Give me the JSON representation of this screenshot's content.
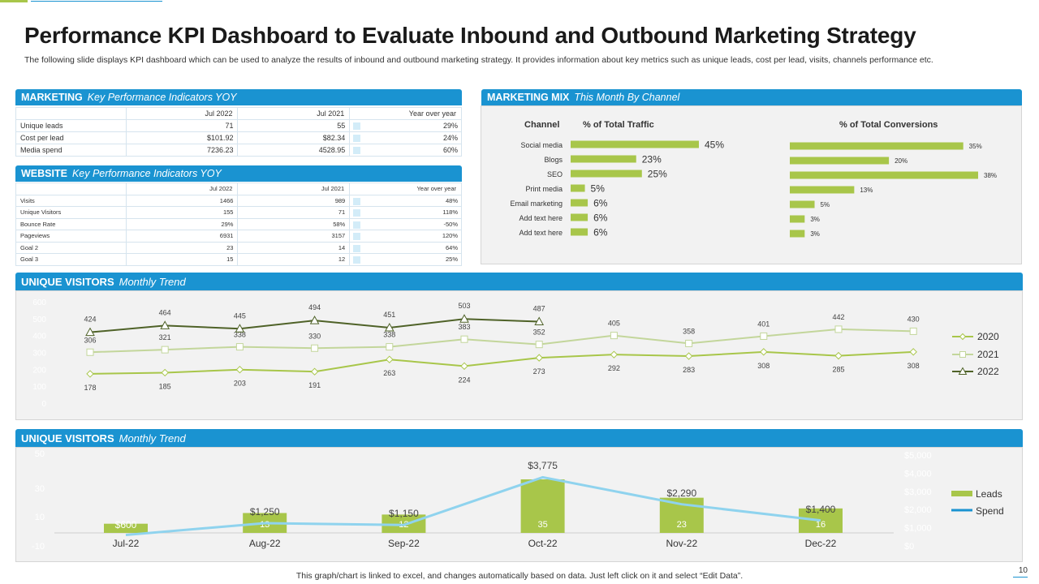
{
  "title": "Performance KPI Dashboard to Evaluate Inbound and Outbound Marketing Strategy",
  "subtitle": "The following slide displays KPI dashboard which can be used to analyze the results of inbound and outbound marketing strategy. It provides information about key metrics such as unique leads, cost per lead, visits, channels performance etc.",
  "marketing": {
    "title": "MARKETING",
    "subtitle": "Key Performance Indicators YOY",
    "columns": [
      "",
      "Jul 2022",
      "Jul 2021",
      "Year over year"
    ],
    "rows": [
      {
        "label": "Unique leads",
        "v2022": "71",
        "v2021": "55",
        "yoy": "29%"
      },
      {
        "label": "Cost per lead",
        "v2022": "$101.92",
        "v2021": "$82.34",
        "yoy": "24%"
      },
      {
        "label": "Media spend",
        "v2022": "7236.23",
        "v2021": "4528.95",
        "yoy": "60%"
      }
    ]
  },
  "website": {
    "title": "WEBSITE",
    "subtitle": "Key Performance Indicators YOY",
    "columns": [
      "",
      "Jul 2022",
      "Jul 2021",
      "Year over year"
    ],
    "rows": [
      {
        "label": "Visits",
        "v2022": "1466",
        "v2021": "989",
        "yoy": "48%"
      },
      {
        "label": "Unique Visitors",
        "v2022": "155",
        "v2021": "71",
        "yoy": "118%"
      },
      {
        "label": "Bounce Rate",
        "v2022": "29%",
        "v2021": "58%",
        "yoy": "-50%"
      },
      {
        "label": "Pageviews",
        "v2022": "6931",
        "v2021": "3157",
        "yoy": "120%"
      },
      {
        "label": "Goal 2",
        "v2022": "23",
        "v2021": "14",
        "yoy": "64%"
      },
      {
        "label": "Goal 3",
        "v2022": "15",
        "v2021": "12",
        "yoy": "25%"
      }
    ]
  },
  "mix": {
    "title": "MARKETING  MIX",
    "subtitle": "This Month By Channel",
    "channel_header": "Channel",
    "traffic_header": "% of Total Traffic",
    "conversions_header": "% of Total Conversions"
  },
  "visitors": {
    "title": "UNIQUE  VISITORS",
    "subtitle": "Monthly Trend"
  },
  "leads": {
    "title": "UNIQUE  VISITORS",
    "subtitle": "Monthly Trend"
  },
  "footer": "This graph/chart is linked to excel,  and changes automatically based on data. Just left click on it and select “Edit Data”.",
  "page_number": "10",
  "colors": {
    "accent": "#1a93d1",
    "green": "#a8c64a",
    "dark_green": "#4f6228",
    "light_green": "#c3d69b",
    "spend_line": "#8fd3ee"
  },
  "chart_data": [
    {
      "type": "bar",
      "orientation": "horizontal",
      "title": "% of Total Traffic",
      "categories": [
        "Social media",
        "Blogs",
        "SEO",
        "Print media",
        "Email marketing",
        "Add text here",
        "Add text here"
      ],
      "values": [
        45,
        23,
        25,
        5,
        6,
        6,
        6
      ],
      "value_labels": [
        "45%",
        "23%",
        "25%",
        "5%",
        "6%",
        "6%",
        "6%"
      ]
    },
    {
      "type": "bar",
      "orientation": "horizontal",
      "title": "% of Total Conversions",
      "categories": [
        "Social media",
        "Blogs",
        "SEO",
        "Print media",
        "Email marketing",
        "Add text here",
        "Add text here"
      ],
      "values": [
        35,
        20,
        38,
        13,
        5,
        3,
        3
      ],
      "value_labels": [
        "35%",
        "20%",
        "38%",
        "13%",
        "5%",
        "3%",
        "3%"
      ]
    },
    {
      "type": "line",
      "ylim": [
        0,
        600
      ],
      "yticks": [
        "0",
        "100",
        "200",
        "300",
        "400",
        "500",
        "600"
      ],
      "legend": "right",
      "series": [
        {
          "name": "2020",
          "values": [
            178,
            185,
            203,
            191,
            263,
            224,
            273,
            292,
            283,
            308,
            285,
            308
          ]
        },
        {
          "name": "2021",
          "values": [
            306,
            321,
            338,
            330,
            338,
            383,
            352,
            405,
            358,
            401,
            442,
            430
          ]
        },
        {
          "name": "2022",
          "values": [
            424,
            464,
            445,
            494,
            451,
            503,
            487
          ]
        }
      ]
    },
    {
      "type": "bar",
      "categories": [
        "Jul-22",
        "Aug-22",
        "Sep-22",
        "Oct-22",
        "Nov-22",
        "Dec-22"
      ],
      "ylim": [
        -10,
        50
      ],
      "yticks": [
        "-10",
        "10",
        "30",
        "50"
      ],
      "y2lim": [
        0,
        5000
      ],
      "y2ticks": [
        "$0",
        "$1,000",
        "$2,000",
        "$3,000",
        "$4,000",
        "$5,000"
      ],
      "legend": "right",
      "series": [
        {
          "name": "Leads",
          "type": "bar",
          "values": [
            6,
            13,
            12,
            35,
            23,
            16
          ],
          "value_labels": [
            "",
            "13",
            "12",
            "35",
            "23",
            "16"
          ]
        },
        {
          "name": "Spend",
          "type": "line",
          "values": [
            600,
            1250,
            1150,
            3775,
            2290,
            1400
          ],
          "value_labels": [
            "$600",
            "$1,250",
            "$1,150",
            "$3,775",
            "$2,290",
            "$1,400"
          ]
        }
      ]
    }
  ]
}
